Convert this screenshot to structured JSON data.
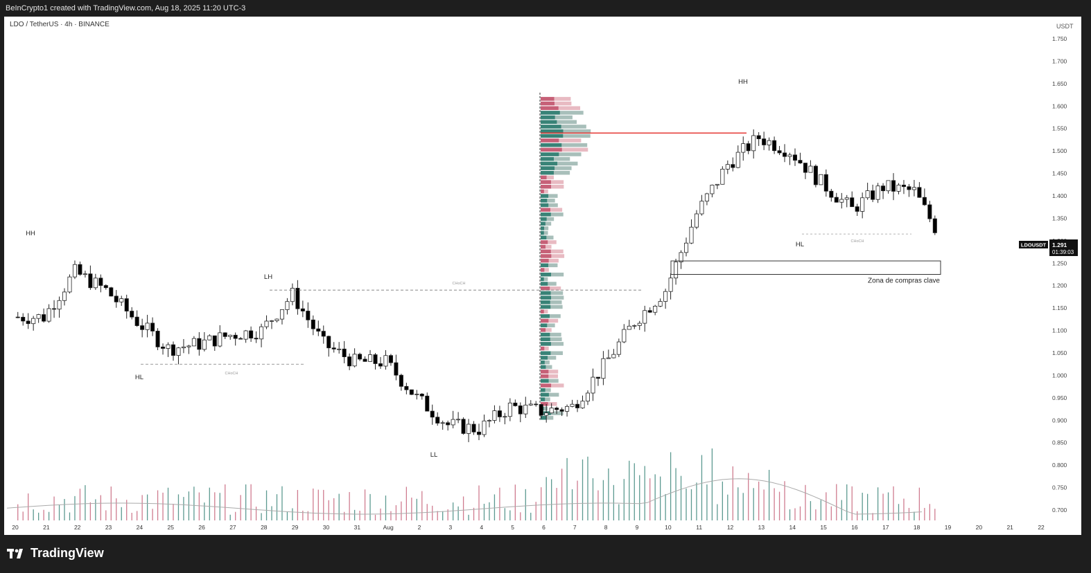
{
  "header": {
    "attribution": "BeInCrypto1 created with TradingView.com, Aug 18, 2025 11:20 UTC-3"
  },
  "symbol_line": "LDO / TetherUS · 4h · BINANCE",
  "brand": "TradingView",
  "colors": {
    "up": "#ffffff",
    "down": "#000000",
    "poc_line": "#e53935",
    "vol_up": "#26786b",
    "vol_down": "#c0506a"
  },
  "chart_data": {
    "type": "candlestick",
    "pair": "LDOUSDT",
    "price_axis_label": "USDT",
    "price_ticks": [
      "1.750",
      "1.700",
      "1.650",
      "1.600",
      "1.550",
      "1.500",
      "1.450",
      "1.400",
      "1.350",
      "1.300",
      "1.250",
      "1.200",
      "1.150",
      "1.100",
      "1.050",
      "1.000",
      "0.950",
      "0.900",
      "0.850",
      "0.800",
      "0.750",
      "0.700"
    ],
    "ylim": [
      0.68,
      1.78
    ],
    "x_ticks": [
      "20",
      "21",
      "22",
      "23",
      "24",
      "25",
      "26",
      "27",
      "28",
      "29",
      "30",
      "31",
      "Aug",
      "2",
      "3",
      "4",
      "5",
      "6",
      "7",
      "8",
      "9",
      "10",
      "11",
      "12",
      "13",
      "14",
      "15",
      "16",
      "17",
      "18",
      "19",
      "20",
      "21",
      "22"
    ],
    "last_price": "1.291",
    "countdown": "01:39:03",
    "daily_closes": [
      {
        "day": "Jul 20",
        "close": 1.13
      },
      {
        "day": "Jul 21",
        "close": 1.23
      },
      {
        "day": "Jul 22",
        "close": 1.19
      },
      {
        "day": "Jul 23",
        "close": 1.12
      },
      {
        "day": "Jul 24",
        "close": 1.06
      },
      {
        "day": "Jul 25",
        "close": 1.07
      },
      {
        "day": "Jul 26",
        "close": 1.09
      },
      {
        "day": "Jul 27",
        "close": 1.1
      },
      {
        "day": "Jul 28",
        "close": 1.18
      },
      {
        "day": "Jul 29",
        "close": 1.07
      },
      {
        "day": "Jul 30",
        "close": 1.03
      },
      {
        "day": "Jul 31",
        "close": 1.03
      },
      {
        "day": "Aug 1",
        "close": 0.95
      },
      {
        "day": "Aug 2",
        "close": 0.89
      },
      {
        "day": "Aug 3",
        "close": 0.88
      },
      {
        "day": "Aug 4",
        "close": 0.93
      },
      {
        "day": "Aug 5",
        "close": 0.92
      },
      {
        "day": "Aug 6",
        "close": 0.93
      },
      {
        "day": "Aug 7",
        "close": 1.02
      },
      {
        "day": "Aug 8",
        "close": 1.12
      },
      {
        "day": "Aug 9",
        "close": 1.19
      },
      {
        "day": "Aug 10",
        "close": 1.36
      },
      {
        "day": "Aug 11",
        "close": 1.47
      },
      {
        "day": "Aug 12",
        "close": 1.53
      },
      {
        "day": "Aug 13",
        "close": 1.5
      },
      {
        "day": "Aug 14",
        "close": 1.43
      },
      {
        "day": "Aug 15",
        "close": 1.37
      },
      {
        "day": "Aug 16",
        "close": 1.42
      },
      {
        "day": "Aug 17",
        "close": 1.41
      },
      {
        "day": "Aug 18",
        "close": 1.29
      }
    ],
    "annotations": [
      {
        "label": "HH",
        "price": 1.36
      },
      {
        "label": "LH",
        "price": 1.2
      },
      {
        "label": "HL",
        "price": 1.0
      },
      {
        "label": "LL",
        "price": 0.84
      },
      {
        "label": "HH",
        "price": 1.65
      },
      {
        "label": "HL",
        "price": 1.3
      },
      {
        "label": "CHoCH",
        "price": 1.025
      },
      {
        "label": "CHoCH",
        "price": 1.19
      },
      {
        "label": "CHoCH",
        "price": 1.315
      }
    ],
    "poc_price": 1.54,
    "zone": {
      "label": "Zona de compras clave",
      "from": 1.225,
      "to": 1.255
    }
  }
}
